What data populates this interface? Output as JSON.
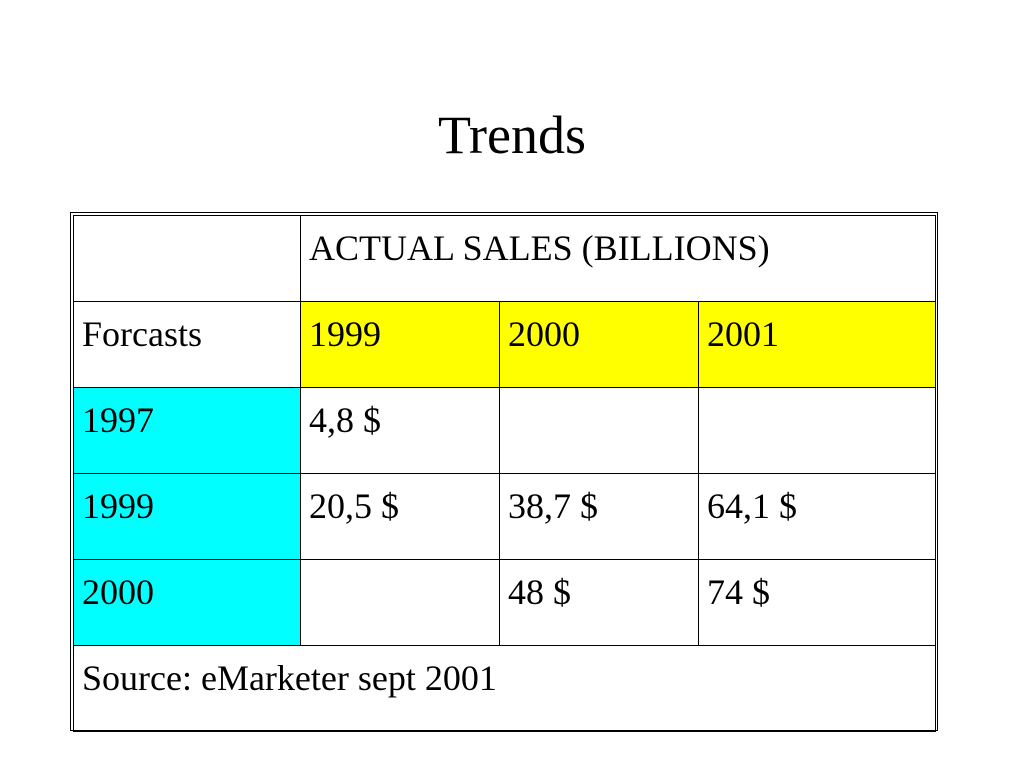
{
  "title": "Trends",
  "table": {
    "header_label": "ACTUAL SALES (BILLIONS)",
    "row_header_label": "Forcasts",
    "years": [
      "1999",
      "2000",
      "2001"
    ],
    "rows": [
      {
        "forecast": "1997",
        "values": [
          "4,8 $",
          "",
          ""
        ]
      },
      {
        "forecast": "1999",
        "values": [
          "20,5 $",
          "38,7 $",
          "64,1 $"
        ]
      },
      {
        "forecast": "2000",
        "values": [
          "",
          "48 $",
          "74 $"
        ]
      }
    ],
    "source": "Source: eMarketer sept 2001"
  },
  "colors": {
    "year_header_bg": "#ffff00",
    "forecast_year_bg": "#00ffff"
  }
}
